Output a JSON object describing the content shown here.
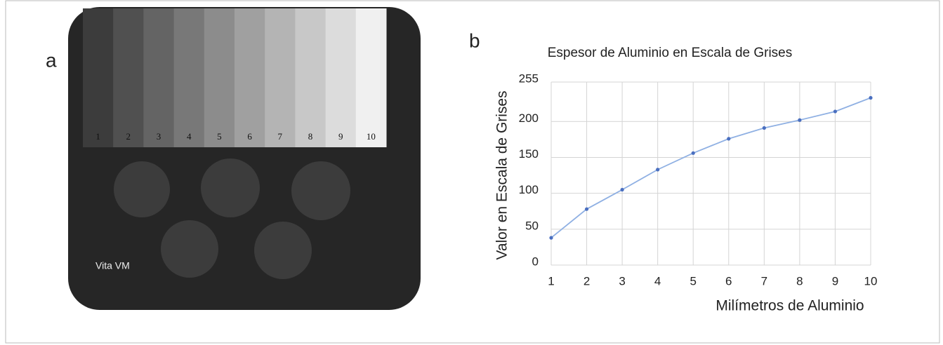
{
  "panel_a": {
    "label": "a",
    "steps": [
      "1",
      "2",
      "3",
      "4",
      "5",
      "6",
      "7",
      "8",
      "9",
      "10"
    ],
    "sample_label": "Vita VM"
  },
  "panel_b_label": "b",
  "chart_data": {
    "type": "line",
    "title": "Espesor de Aluminio en Escala de Grises",
    "x_label": "Milímetros de Aluminio",
    "y_label": "Valor en Escala de Grises",
    "x": [
      1,
      2,
      3,
      4,
      5,
      6,
      7,
      8,
      9,
      10
    ],
    "series": [
      {
        "color": "#8fb0e3",
        "marker_color": "#4a6fc0",
        "values": [
          38,
          78,
          105,
          133,
          156,
          176,
          191,
          202,
          214,
          233
        ]
      }
    ],
    "xlim": [
      1,
      10
    ],
    "xticks": [
      1,
      2,
      3,
      4,
      5,
      6,
      7,
      8,
      9,
      10
    ],
    "ylim": [
      0,
      255
    ],
    "yticks": [
      0,
      50,
      100,
      150,
      200,
      255
    ],
    "grid": true
  }
}
